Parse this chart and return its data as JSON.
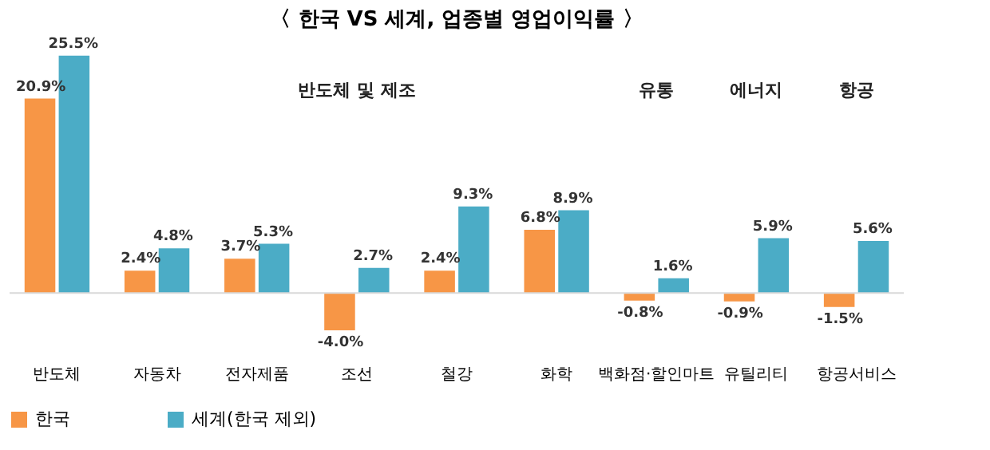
{
  "chart_data": {
    "type": "bar",
    "title": "〈 한국 VS 세계, 업종별 영업이익률 〉",
    "categories": [
      "반도체",
      "자동차",
      "전자제품",
      "조선",
      "철강",
      "화학",
      "백화점·할인마트",
      "유틸리티",
      "항공서비스"
    ],
    "series": [
      {
        "name": "한국",
        "color": "#f79646",
        "values": [
          20.9,
          2.4,
          3.7,
          -4.0,
          2.4,
          6.8,
          -0.8,
          -0.9,
          -1.5
        ],
        "value_labels": [
          "20.9%",
          "2.4%",
          "3.7%",
          "-4.0%",
          "2.4%",
          "6.8%",
          "-0.8%",
          "-0.9%",
          "-1.5%"
        ]
      },
      {
        "name": "세계(한국 제외)",
        "color": "#4bacc6",
        "values": [
          25.5,
          4.8,
          5.3,
          2.7,
          9.3,
          8.9,
          1.6,
          5.9,
          5.6
        ],
        "value_labels": [
          "25.5%",
          "4.8%",
          "5.3%",
          "2.7%",
          "9.3%",
          "8.9%",
          "1.6%",
          "5.9%",
          "5.6%"
        ]
      }
    ],
    "annotations": [
      "반도체 및 제조",
      "유통",
      "에너지",
      "항공"
    ],
    "legend": "bottom",
    "grid": false
  }
}
